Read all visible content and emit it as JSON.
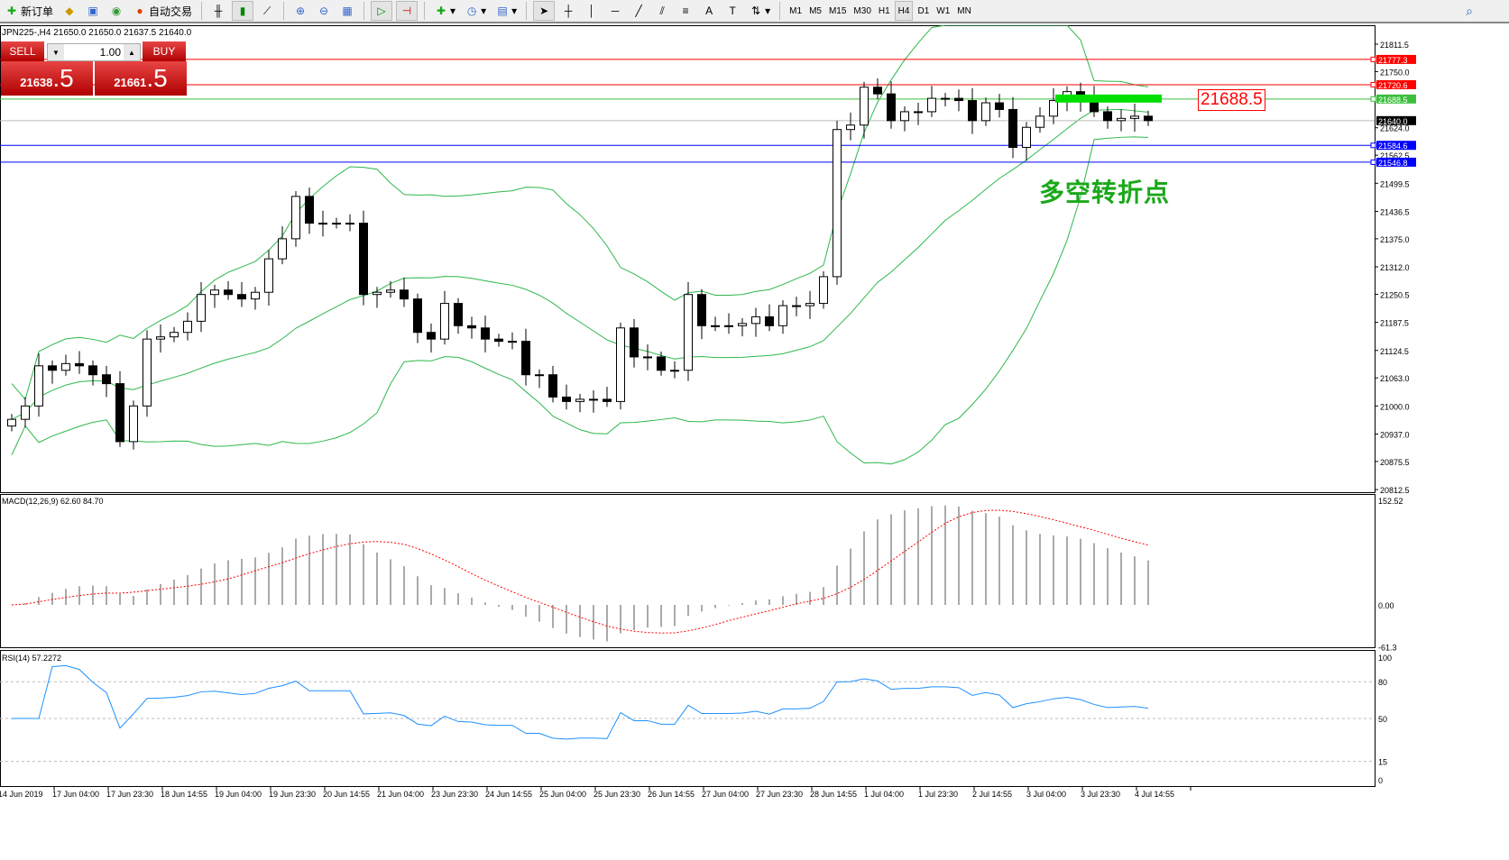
{
  "toolbar": {
    "new_order": "新订单",
    "auto_trade": "自动交易",
    "timeframes": [
      "M1",
      "M5",
      "M15",
      "M30",
      "H1",
      "H4",
      "D1",
      "W1",
      "MN"
    ],
    "selected_timeframe": "H4"
  },
  "symbol_info": "JPN225-,H4  21650.0 21650.0 21637.5 21640.0",
  "trade_panel": {
    "sell_label": "SELL",
    "buy_label": "BUY",
    "volume": "1.00",
    "sell_price_main": "21638",
    "sell_price_frac": ".5",
    "buy_price_main": "21661",
    "buy_price_frac": ".5"
  },
  "annotation": "多空转折点",
  "annotation_price_tag": "21688.5",
  "colors": {
    "bull_band": "#2db84b",
    "red_line": "#ff0000",
    "blue_line": "#0000ff",
    "green_line": "#3cbf3c",
    "macd_signal": "#ff0000",
    "rsi": "#1e90ff",
    "highlight": "#00e000"
  },
  "price_axis": [
    "21811.5",
    "21750.0",
    "21624.0",
    "21562.5",
    "21499.5",
    "21436.5",
    "21375.0",
    "21312.0",
    "21250.5",
    "21187.5",
    "21124.5",
    "21063.0",
    "21000.0",
    "20937.0",
    "20875.5",
    "20812.5"
  ],
  "price_lines": [
    {
      "price": 21777.3,
      "label": "21777.3",
      "color": "#ff0000"
    },
    {
      "price": 21720.6,
      "label": "21720.6",
      "color": "#ff0000"
    },
    {
      "price": 21688.5,
      "label": "21688.5",
      "color": "#3cbf3c"
    },
    {
      "price": 21640.0,
      "label": "21640.0",
      "color": "#000000"
    },
    {
      "price": 21584.6,
      "label": "21584.6",
      "color": "#0000ff"
    },
    {
      "price": 21546.8,
      "label": "21546.8",
      "color": "#0000ff"
    }
  ],
  "closes": [
    20970,
    21000,
    21090,
    21080,
    21095,
    21090,
    21070,
    21050,
    20920,
    21000,
    21150,
    21155,
    21165,
    21190,
    21250,
    21260,
    21250,
    21240,
    21255,
    21330,
    21375,
    21470,
    21410,
    21410,
    21410,
    21410,
    21250,
    21255,
    21260,
    21240,
    21165,
    21150,
    21230,
    21180,
    21175,
    21150,
    21145,
    21145,
    21070,
    21070,
    21020,
    21010,
    21015,
    21015,
    21010,
    21175,
    21110,
    21110,
    21080,
    21080,
    21250,
    21180,
    21180,
    21180,
    21185,
    21200,
    21180,
    21225,
    21225,
    21230,
    21290,
    21620,
    21630,
    21715,
    21700,
    21640,
    21660,
    21660,
    21690,
    21690,
    21685,
    21640,
    21680,
    21665,
    21580,
    21625,
    21650,
    21685,
    21705,
    21690,
    21660,
    21640,
    21645,
    21650,
    21640
  ],
  "macd": {
    "label": "MACD(12,26,9) 62.60 84.70",
    "axis": [
      "152.52",
      "0.00",
      "-61.3"
    ]
  },
  "rsi": {
    "label": "RSI(14) 57.2272",
    "axis": [
      "100",
      "80",
      "50",
      "15",
      "0"
    ]
  },
  "time_axis": [
    "14 Jun 2019",
    "17 Jun 04:00",
    "17 Jun 23:30",
    "18 Jun 14:55",
    "19 Jun 04:00",
    "19 Jun 23:30",
    "20 Jun 14:55",
    "21 Jun 04:00",
    "23 Jun 23:30",
    "24 Jun 14:55",
    "25 Jun 04:00",
    "25 Jun 23:30",
    "26 Jun 14:55",
    "27 Jun 04:00",
    "27 Jun 23:30",
    "28 Jun 14:55",
    "1 Jul 04:00",
    "1 Jul 23:30",
    "2 Jul 14:55",
    "3 Jul 04:00",
    "3 Jul 23:30",
    "4 Jul 14:55"
  ]
}
